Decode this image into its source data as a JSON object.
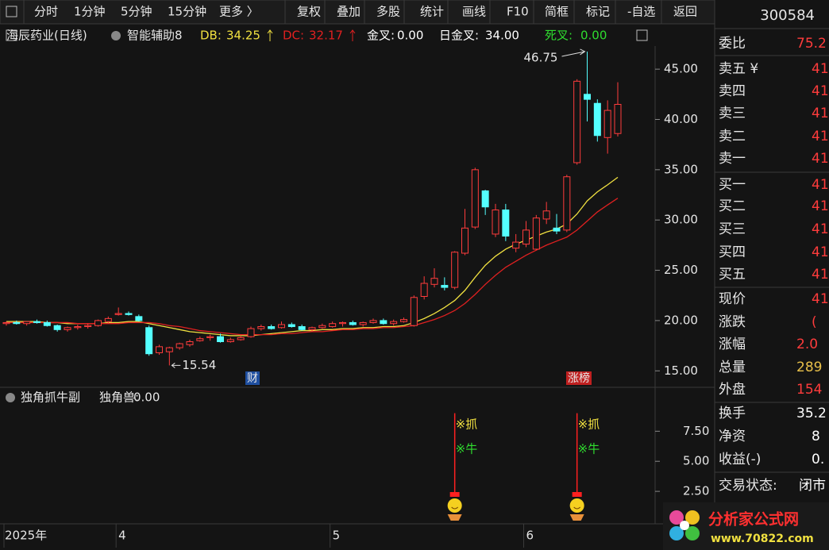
{
  "toolbar": [
    "分时",
    "1分钟",
    "5分钟",
    "15分钟",
    "更多 〉",
    "复权",
    "叠加",
    "多股",
    "统计",
    "画线",
    "F10",
    "简框",
    "标记",
    "-自选",
    "返回"
  ],
  "header": {
    "stock": "海辰药业(日线)",
    "indicator": "智能辅助8",
    "readouts": [
      {
        "name": "金叉:",
        "value": "0.00",
        "color": "#ffffff"
      },
      {
        "name": "日金叉:",
        "value": "34.00",
        "color": "#ffffff"
      },
      {
        "name": "死叉:",
        "value": "0.00",
        "color": "#2fdc2f"
      }
    ]
  },
  "chart_data": [
    {
      "type": "candlestick",
      "categories": [
        "2025年",
        null,
        null,
        null,
        null,
        null,
        null,
        null,
        null,
        null,
        null,
        "4",
        null,
        null,
        null,
        null,
        null,
        null,
        null,
        null,
        null,
        null,
        null,
        null,
        null,
        null,
        null,
        null,
        null,
        null,
        null,
        null,
        "5",
        null,
        null,
        null,
        null,
        null,
        null,
        null,
        null,
        null,
        null,
        null,
        null,
        null,
        null,
        null,
        null,
        null,
        null,
        "6",
        null,
        null,
        null,
        null,
        null,
        null,
        null,
        null,
        null
      ],
      "open": [
        19.7,
        19.8,
        19.7,
        19.9,
        19.8,
        19.5,
        19.1,
        19.3,
        19.4,
        19.5,
        19.9,
        20.6,
        20.7,
        20.4,
        19.3,
        16.8,
        16.9,
        17.3,
        17.6,
        18.0,
        18.3,
        18.4,
        17.9,
        18.1,
        18.4,
        19.2,
        19.4,
        19.3,
        19.6,
        19.4,
        19.1,
        19.3,
        19.4,
        19.7,
        19.8,
        19.6,
        19.8,
        20.0,
        19.7,
        19.9,
        19.5,
        22.4,
        23.6,
        23.5,
        23.3,
        26.7,
        29.3,
        32.9,
        28.6,
        31.0,
        27.2,
        27.6,
        27.1,
        30.1,
        29.2,
        29.0,
        35.7,
        42.5,
        41.6,
        38.2,
        38.6
      ],
      "high": [
        19.9,
        20.0,
        19.9,
        20.1,
        20.0,
        19.6,
        19.4,
        19.6,
        19.7,
        20.1,
        20.4,
        21.3,
        20.9,
        20.6,
        19.5,
        17.6,
        17.4,
        17.8,
        18.1,
        18.4,
        18.6,
        18.7,
        18.3,
        18.5,
        19.4,
        19.6,
        19.6,
        19.9,
        19.8,
        19.6,
        19.4,
        19.7,
        19.9,
        19.9,
        20.0,
        19.9,
        20.2,
        20.2,
        20.1,
        20.3,
        22.5,
        24.4,
        25.2,
        24.3,
        26.9,
        31.1,
        35.2,
        33.0,
        31.6,
        31.6,
        28.6,
        29.9,
        30.5,
        31.8,
        30.6,
        34.5,
        44.0,
        46.75,
        42.0,
        41.9,
        43.7
      ],
      "low": [
        19.5,
        19.6,
        19.5,
        19.7,
        19.4,
        18.9,
        18.9,
        19.1,
        19.2,
        19.4,
        19.7,
        20.5,
        20.5,
        19.9,
        16.5,
        16.6,
        15.54,
        17.1,
        17.4,
        17.9,
        18.0,
        17.8,
        17.8,
        18.0,
        18.3,
        19.0,
        19.1,
        19.2,
        19.3,
        19.0,
        18.9,
        19.2,
        19.3,
        19.4,
        19.5,
        19.4,
        19.7,
        19.6,
        19.5,
        19.8,
        19.4,
        22.1,
        23.3,
        23.0,
        23.1,
        26.5,
        29.1,
        30.5,
        28.3,
        27.9,
        26.8,
        27.3,
        27.0,
        29.6,
        28.6,
        28.8,
        35.5,
        39.8,
        37.8,
        36.6,
        38.3
      ],
      "close": [
        19.8,
        19.7,
        19.9,
        19.8,
        19.5,
        19.1,
        19.3,
        19.4,
        19.5,
        20.0,
        20.2,
        20.7,
        20.6,
        20.0,
        16.7,
        17.4,
        17.3,
        17.7,
        17.9,
        18.2,
        18.4,
        17.9,
        18.1,
        18.3,
        19.2,
        19.4,
        19.2,
        19.6,
        19.4,
        19.1,
        19.3,
        19.5,
        19.7,
        19.8,
        19.6,
        19.8,
        20.0,
        19.7,
        19.9,
        20.1,
        22.3,
        23.7,
        24.2,
        23.3,
        26.8,
        29.2,
        35.0,
        31.3,
        31.0,
        28.4,
        27.8,
        29.0,
        30.2,
        30.9,
        28.9,
        34.3,
        43.8,
        42.0,
        38.4,
        40.9,
        41.5
      ],
      "up_color": "#ff3c3c",
      "down_color": "#54ffff",
      "lines": [
        {
          "name": "DB:",
          "color": "#f0e040",
          "values": [
            19.9,
            19.9,
            19.9,
            19.9,
            19.8,
            19.8,
            19.7,
            19.7,
            19.7,
            19.7,
            19.8,
            19.8,
            19.9,
            19.9,
            19.7,
            19.5,
            19.3,
            19.1,
            18.9,
            18.8,
            18.7,
            18.6,
            18.5,
            18.5,
            18.5,
            18.6,
            18.7,
            18.8,
            18.9,
            19.0,
            19.0,
            19.1,
            19.1,
            19.2,
            19.2,
            19.3,
            19.3,
            19.4,
            19.4,
            19.5,
            19.8,
            20.2,
            20.7,
            21.3,
            22.0,
            23.0,
            24.3,
            25.5,
            26.4,
            27.1,
            27.6,
            28.0,
            28.4,
            28.8,
            29.1,
            29.6,
            30.6,
            31.9,
            32.8,
            33.5,
            34.25
          ]
        },
        {
          "name": "DC:",
          "color": "#e02020",
          "values": [
            19.8,
            19.8,
            19.8,
            19.8,
            19.8,
            19.8,
            19.8,
            19.7,
            19.7,
            19.7,
            19.7,
            19.7,
            19.8,
            19.8,
            19.8,
            19.7,
            19.5,
            19.4,
            19.2,
            19.0,
            18.9,
            18.8,
            18.7,
            18.6,
            18.6,
            18.6,
            18.6,
            18.7,
            18.7,
            18.8,
            18.9,
            18.9,
            19.0,
            19.1,
            19.1,
            19.2,
            19.2,
            19.3,
            19.3,
            19.4,
            19.5,
            19.8,
            20.1,
            20.5,
            21.0,
            21.7,
            22.6,
            23.6,
            24.5,
            25.3,
            25.9,
            26.5,
            27.0,
            27.5,
            27.9,
            28.3,
            29.0,
            29.9,
            30.8,
            31.5,
            32.17
          ]
        }
      ],
      "markers": [
        {
          "text": "财",
          "color": "#1f4fa0"
        },
        {
          "text": "涨榜",
          "color": "#c02020"
        }
      ],
      "ylim": [
        13.6,
        47.3
      ],
      "yticks": [
        {
          "value": 15,
          "label": "15.00"
        },
        {
          "value": 20,
          "label": "20.00"
        },
        {
          "value": 25,
          "label": "25.00"
        },
        {
          "value": 30,
          "label": "30.00"
        },
        {
          "value": 35,
          "label": "35.00"
        },
        {
          "value": 40,
          "label": "40.00"
        },
        {
          "value": 45,
          "label": "45.00"
        }
      ]
    },
    {
      "type": "signal",
      "title": "独角抓牛副",
      "readout_name": "独角兽:",
      "readout_value": "0.00",
      "values": [
        null,
        null,
        null,
        null,
        null,
        null,
        null,
        null,
        null,
        null,
        null,
        null,
        null,
        null,
        null,
        null,
        null,
        null,
        null,
        null,
        null,
        null,
        null,
        null,
        null,
        null,
        null,
        null,
        null,
        null,
        null,
        null,
        null,
        null,
        null,
        null,
        null,
        null,
        null,
        null,
        null,
        null,
        null,
        null,
        9.0,
        null,
        null,
        null,
        null,
        null,
        null,
        null,
        null,
        null,
        null,
        null,
        9.0,
        null,
        null,
        null,
        null
      ],
      "signal_labels": [
        {
          "text": "※抓",
          "color": "#f0e040"
        },
        {
          "text": "※牛",
          "color": "#2fdc2f"
        }
      ],
      "color": "#ff2020",
      "ylim": [
        0,
        9.7
      ],
      "yticks": [
        {
          "value": 2.5,
          "label": "2.50"
        },
        {
          "value": 5,
          "label": "5.00"
        },
        {
          "value": 7.5,
          "label": "7.50"
        }
      ]
    }
  ],
  "quote_panel": {
    "code": "300584",
    "rows": [
      {
        "label": "委比",
        "value": "75.2",
        "color": "#ff3c3c"
      },
      {
        "label": "卖五 ¥",
        "value": "41",
        "color": "#ff3c3c"
      },
      {
        "label": "卖四",
        "value": "41",
        "color": "#ff3c3c"
      },
      {
        "label": "卖三",
        "value": "41",
        "color": "#ff3c3c"
      },
      {
        "label": "卖二",
        "value": "41",
        "color": "#ff3c3c"
      },
      {
        "label": "卖一",
        "value": "41",
        "color": "#ff3c3c"
      },
      {
        "label": "买一",
        "value": "41",
        "color": "#ff3c3c"
      },
      {
        "label": "买二",
        "value": "41",
        "color": "#ff3c3c"
      },
      {
        "label": "买三",
        "value": "41",
        "color": "#ff3c3c"
      },
      {
        "label": "买四",
        "value": "41",
        "color": "#ff3c3c"
      },
      {
        "label": "买五",
        "value": "41",
        "color": "#ff3c3c"
      },
      {
        "label": "现价",
        "value": "41",
        "color": "#ff3c3c"
      },
      {
        "label": "涨跌",
        "value": "(",
        "color": "#ff3c3c"
      },
      {
        "label": "涨幅",
        "value": "2.0",
        "color": "#ff3c3c"
      },
      {
        "label": "总量",
        "value": "289",
        "color": "#e8c04a"
      },
      {
        "label": "外盘",
        "value": "154",
        "color": "#ff3c3c"
      },
      {
        "label": "换手",
        "value": "35.2",
        "color": "#ffffff"
      },
      {
        "label": "净资",
        "value": "8",
        "color": "#ffffff"
      },
      {
        "label": "收益(-)",
        "value": "0.",
        "color": "#ffffff"
      },
      {
        "label": "交易状态:",
        "value": "闭市",
        "color": "#ffffff"
      }
    ]
  },
  "watermark": {
    "name": "分析家公式网",
    "url": "www.70822.com"
  }
}
